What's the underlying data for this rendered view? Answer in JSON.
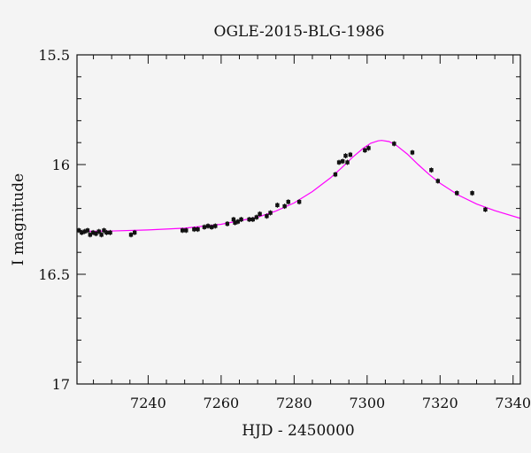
{
  "chart_data": {
    "type": "scatter",
    "title": "OGLE-2015-BLG-1986",
    "xlabel": "HJD - 2450000",
    "ylabel": "I magnitude",
    "xlim": [
      7220.5,
      7342
    ],
    "ylim": [
      17.0,
      15.5
    ],
    "y_inverted": true,
    "x_ticks": [
      7240,
      7260,
      7280,
      7300,
      7320,
      7340
    ],
    "x_tick_labels": [
      "7240",
      "7260",
      "7280",
      "7300",
      "7320",
      "7340"
    ],
    "y_ticks": [
      15.5,
      16.0,
      16.5,
      17.0
    ],
    "y_tick_labels": [
      "15.5",
      "16",
      "16.5",
      "17"
    ],
    "grid": false,
    "colors": {
      "points": "#111111",
      "model": "#ff00ff",
      "frame": "#111111",
      "background": "#f4f4f4"
    },
    "series": [
      {
        "points": [
          {
            "x": 7221.0,
            "y": 16.3
          },
          {
            "x": 7221.8,
            "y": 16.31
          },
          {
            "x": 7222.6,
            "y": 16.305
          },
          {
            "x": 7223.4,
            "y": 16.3
          },
          {
            "x": 7224.1,
            "y": 16.32
          },
          {
            "x": 7224.9,
            "y": 16.31
          },
          {
            "x": 7225.7,
            "y": 16.315
          },
          {
            "x": 7226.5,
            "y": 16.305
          },
          {
            "x": 7227.2,
            "y": 16.32
          },
          {
            "x": 7227.9,
            "y": 16.3
          },
          {
            "x": 7228.6,
            "y": 16.31
          },
          {
            "x": 7229.6,
            "y": 16.31
          },
          {
            "x": 7235.3,
            "y": 16.32
          },
          {
            "x": 7236.3,
            "y": 16.31
          },
          {
            "x": 7249.4,
            "y": 16.3
          },
          {
            "x": 7250.4,
            "y": 16.3
          },
          {
            "x": 7252.6,
            "y": 16.295
          },
          {
            "x": 7253.6,
            "y": 16.295
          },
          {
            "x": 7255.4,
            "y": 16.285
          },
          {
            "x": 7256.4,
            "y": 16.28
          },
          {
            "x": 7257.4,
            "y": 16.285
          },
          {
            "x": 7258.4,
            "y": 16.28
          },
          {
            "x": 7261.7,
            "y": 16.27
          },
          {
            "x": 7263.4,
            "y": 16.25
          },
          {
            "x": 7263.8,
            "y": 16.265
          },
          {
            "x": 7264.6,
            "y": 16.26
          },
          {
            "x": 7265.5,
            "y": 16.25
          },
          {
            "x": 7267.7,
            "y": 16.25
          },
          {
            "x": 7268.7,
            "y": 16.25
          },
          {
            "x": 7269.7,
            "y": 16.24
          },
          {
            "x": 7270.6,
            "y": 16.225
          },
          {
            "x": 7272.5,
            "y": 16.235
          },
          {
            "x": 7273.5,
            "y": 16.22
          },
          {
            "x": 7275.4,
            "y": 16.185
          },
          {
            "x": 7277.4,
            "y": 16.19
          },
          {
            "x": 7278.4,
            "y": 16.17
          },
          {
            "x": 7281.4,
            "y": 16.17
          },
          {
            "x": 7291.3,
            "y": 16.045
          },
          {
            "x": 7292.3,
            "y": 15.99
          },
          {
            "x": 7293.3,
            "y": 15.985
          },
          {
            "x": 7294.1,
            "y": 15.96
          },
          {
            "x": 7294.6,
            "y": 15.99
          },
          {
            "x": 7295.4,
            "y": 15.955
          },
          {
            "x": 7299.4,
            "y": 15.935
          },
          {
            "x": 7300.4,
            "y": 15.925
          },
          {
            "x": 7307.4,
            "y": 15.905
          },
          {
            "x": 7312.4,
            "y": 15.945
          },
          {
            "x": 7317.6,
            "y": 16.025
          },
          {
            "x": 7319.4,
            "y": 16.075
          },
          {
            "x": 7324.6,
            "y": 16.13
          },
          {
            "x": 7328.8,
            "y": 16.13
          },
          {
            "x": 7332.4,
            "y": 16.205
          }
        ]
      },
      {
        "type": "line",
        "x": [
          7220.5,
          7230,
          7240,
          7250,
          7260,
          7270,
          7275,
          7280,
          7285,
          7290,
          7293,
          7296,
          7299,
          7301,
          7303,
          7304,
          7306,
          7308,
          7311,
          7314,
          7317,
          7320,
          7325,
          7330,
          7335,
          7342
        ],
        "y": [
          16.305,
          16.303,
          16.298,
          16.29,
          16.272,
          16.24,
          16.212,
          16.175,
          16.123,
          16.06,
          16.015,
          15.967,
          15.925,
          15.903,
          15.892,
          15.89,
          15.895,
          15.912,
          15.952,
          16.0,
          16.045,
          16.085,
          16.139,
          16.18,
          16.21,
          16.245
        ]
      }
    ]
  }
}
